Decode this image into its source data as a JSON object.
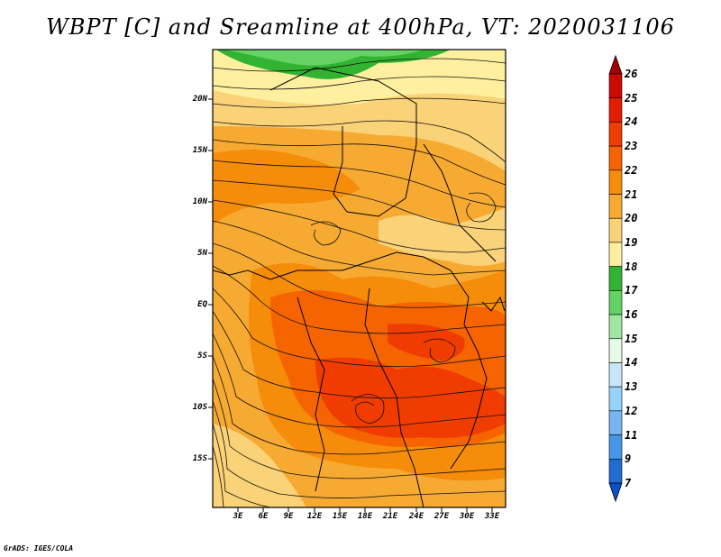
{
  "title": "WBPT [C] and Sreamline at 400hPa, VT: 2020031106",
  "footer": "GrADS: IGES/COLA",
  "lat_ticks": [
    "20N",
    "15N",
    "10N",
    "5N",
    "EQ",
    "5S",
    "10S",
    "15S"
  ],
  "lon_ticks": [
    "3E",
    "6E",
    "9E",
    "12E",
    "15E",
    "18E",
    "21E",
    "24E",
    "27E",
    "30E",
    "33E"
  ],
  "colorbar": {
    "labels": [
      "26",
      "25",
      "24",
      "23",
      "22",
      "21",
      "20",
      "19",
      "18",
      "17",
      "16",
      "15",
      "14",
      "13",
      "12",
      "11",
      "9",
      "7"
    ],
    "colors": [
      "#a50000",
      "#c80a00",
      "#e11e00",
      "#f03c00",
      "#f56400",
      "#f58c0a",
      "#f7aa32",
      "#fad278",
      "#fff0a0",
      "#32b432",
      "#64d264",
      "#a0e6a0",
      "#e6fae6",
      "#c8e6fa",
      "#96d2fa",
      "#78b4f0",
      "#4696e6",
      "#1e6ed2",
      "#0a50c8"
    ]
  },
  "map": {
    "field": "Wet-bulb potential temperature",
    "level": "400hPa"
  }
}
